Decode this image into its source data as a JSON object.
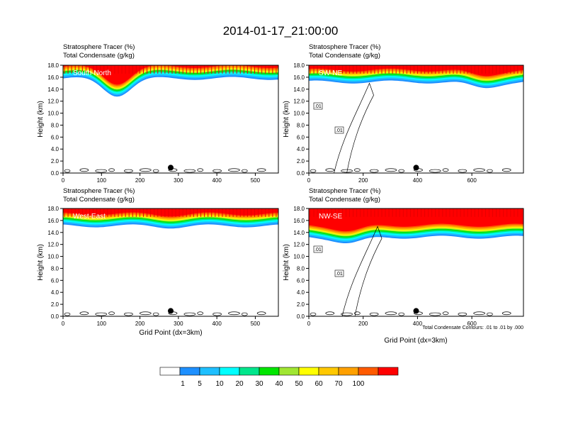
{
  "figure": {
    "title": "2014-01-17_21:00:00",
    "contour_note": "Total Condensate Contours: .01 to .01 by .000"
  },
  "colors": {
    "levels": [
      "#ffffff",
      "#1e90ff",
      "#1ebfff",
      "#00ffff",
      "#00e68c",
      "#00e600",
      "#a0e632",
      "#ffff00",
      "#ffc800",
      "#ffa000",
      "#ff5a00",
      "#ff0000"
    ]
  },
  "chart_data": [
    {
      "type": "contour",
      "panel": "South-North",
      "title_line1": "Stratosphere Tracer   (%)",
      "title_line2": "Total Condensate   (g/kg)",
      "ylabel": "Height (km)",
      "xlabel": "",
      "ylim": [
        0,
        18
      ],
      "xlim": [
        0,
        560
      ],
      "yticks": [
        "0.0",
        "2.0",
        "4.0",
        "6.0",
        "8.0",
        "10.0",
        "12.0",
        "14.0",
        "16.0",
        "18.0"
      ],
      "xticks": [
        0,
        100,
        200,
        300,
        400,
        500
      ],
      "marker_x": 280,
      "tracer_base_km": 15.8,
      "dip_center_x": 140,
      "dip_depth_km": 2.8,
      "contour_labels": []
    },
    {
      "type": "contour",
      "panel": "SW-NE",
      "title_line1": "Stratosphere Tracer   (%)",
      "title_line2": "Total Condensate   (g/kg)",
      "ylabel": "Height (km)",
      "xlabel": "",
      "ylim": [
        0,
        18
      ],
      "xlim": [
        0,
        790
      ],
      "yticks": [
        "0.0",
        "2.0",
        "4.0",
        "6.0",
        "8.0",
        "10.0",
        "12.0",
        "14.0",
        "16.0",
        "18.0"
      ],
      "xticks": [
        0,
        200,
        400,
        600
      ],
      "marker_x": 395,
      "tracer_base_km": 15.2,
      "dip_center_x": 640,
      "dip_depth_km": 1.0,
      "contour_labels": [
        ".01",
        ".01"
      ]
    },
    {
      "type": "contour",
      "panel": "West-East",
      "title_line1": "Stratosphere Tracer   (%)",
      "title_line2": "Total Condensate   (g/kg)",
      "ylabel": "Height (km)",
      "xlabel": "Grid Point (dx=3km)",
      "ylim": [
        0,
        18
      ],
      "xlim": [
        0,
        560
      ],
      "yticks": [
        "0.0",
        "2.0",
        "4.0",
        "6.0",
        "8.0",
        "10.0",
        "12.0",
        "14.0",
        "16.0",
        "18.0"
      ],
      "xticks": [
        0,
        100,
        200,
        300,
        400,
        500
      ],
      "marker_x": 280,
      "tracer_base_km": 15.1,
      "dip_center_x": 280,
      "dip_depth_km": 0.2,
      "contour_labels": []
    },
    {
      "type": "contour",
      "panel": "NW-SE",
      "title_line1": "Stratosphere Tracer   (%)",
      "title_line2": "Total Condensate   (g/kg)",
      "ylabel": "Height (km)",
      "xlabel": "Grid Point (dx=3km)",
      "ylim": [
        0,
        18
      ],
      "xlim": [
        0,
        790
      ],
      "yticks": [
        "0.0",
        "2.0",
        "4.0",
        "6.0",
        "8.0",
        "10.0",
        "12.0",
        "14.0",
        "16.0",
        "18.0"
      ],
      "xticks": [
        0,
        200,
        400,
        600
      ],
      "marker_x": 395,
      "tracer_base_km": 13.2,
      "dip_center_x": 150,
      "dip_depth_km": 1.0,
      "contour_labels": [
        ".01",
        ".01"
      ]
    }
  ],
  "colorbar": {
    "labels": [
      "1",
      "5",
      "10",
      "20",
      "30",
      "40",
      "50",
      "60",
      "70",
      "100"
    ]
  }
}
